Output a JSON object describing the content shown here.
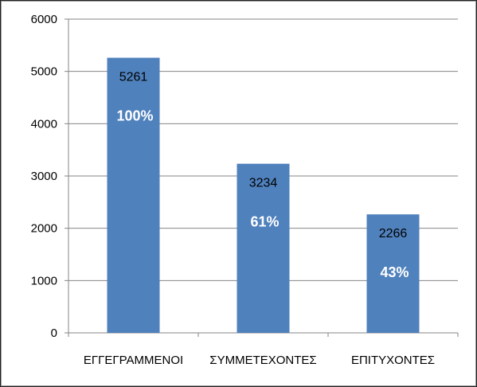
{
  "chart_data": {
    "type": "bar",
    "categories": [
      "ΕΓΓΕΓΡΑΜΜΕΝΟΙ",
      "ΣΥΜΜΕΤΕΧΟΝΤΕΣ",
      "ΕΠΙΤΥΧΟΝΤΕΣ"
    ],
    "values": [
      5261,
      3234,
      2266
    ],
    "value_labels": [
      "5261",
      "3234",
      "2266"
    ],
    "percent_labels": [
      "100%",
      "61%",
      "43%"
    ],
    "ylim": [
      0,
      6000
    ],
    "yticks": [
      0,
      1000,
      2000,
      3000,
      4000,
      5000,
      6000
    ],
    "ytick_labels": [
      "0",
      "1000",
      "2000",
      "3000",
      "4000",
      "5000",
      "6000"
    ],
    "grid": true,
    "legend": "none",
    "bar_color": "#4f81bd",
    "grid_color": "#868686"
  }
}
